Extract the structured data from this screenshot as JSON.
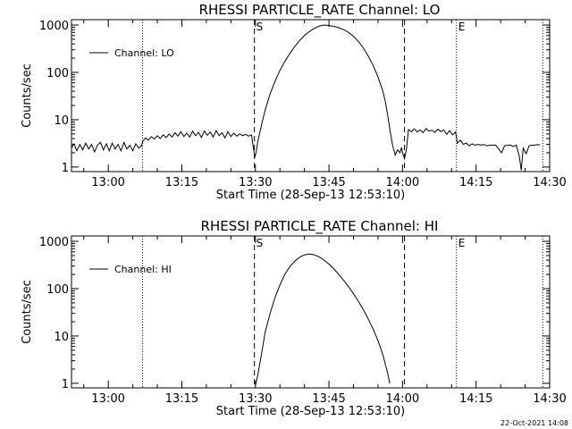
{
  "footer": {
    "generated": "22-Oct-2021 14:08"
  },
  "chart_data": [
    {
      "type": "line",
      "title": "RHESSI PARTICLE_RATE Channel: LO",
      "xlabel": "Start Time (28-Sep-13 12:53:10)",
      "ylabel": "Counts/sec",
      "xlim_minutes": [
        52.5,
        150.0
      ],
      "ylim": [
        0.8,
        1300
      ],
      "log_y": true,
      "x_ticks": [
        {
          "min": 60,
          "label": "13:00"
        },
        {
          "min": 75,
          "label": "13:15"
        },
        {
          "min": 90,
          "label": "13:30"
        },
        {
          "min": 105,
          "label": "13:45"
        },
        {
          "min": 120,
          "label": "14:00"
        },
        {
          "min": 135,
          "label": "14:15"
        },
        {
          "min": 150,
          "label": "14:30"
        }
      ],
      "y_ticks": [
        {
          "value": 1,
          "label": "1"
        },
        {
          "value": 10,
          "label": "10"
        },
        {
          "value": 100,
          "label": "100"
        },
        {
          "value": 1000,
          "label": "1000"
        }
      ],
      "legend": {
        "label": "Channel: LO",
        "position": "top-left"
      },
      "markers": [
        {
          "min": 67.0,
          "style": "dotted",
          "label": ""
        },
        {
          "min": 89.8,
          "style": "dashed",
          "label": "S"
        },
        {
          "min": 120.4,
          "style": "dashed",
          "label": ""
        },
        {
          "min": 131.0,
          "style": "dotted",
          "label": "E"
        },
        {
          "min": 148.6,
          "style": "dotted",
          "label": ""
        }
      ],
      "series": [
        {
          "values": [
            [
              52.5,
              2.5
            ],
            [
              53.0,
              3.1
            ],
            [
              53.6,
              2.2
            ],
            [
              54.2,
              3.0
            ],
            [
              54.8,
              2.3
            ],
            [
              55.4,
              3.2
            ],
            [
              56.0,
              2.4
            ],
            [
              56.6,
              3.0
            ],
            [
              57.2,
              2.1
            ],
            [
              57.8,
              2.9
            ],
            [
              58.4,
              3.3
            ],
            [
              59.0,
              2.3
            ],
            [
              59.6,
              3.1
            ],
            [
              60.2,
              2.2
            ],
            [
              60.8,
              3.2
            ],
            [
              61.4,
              2.4
            ],
            [
              62.0,
              3.0
            ],
            [
              62.6,
              2.2
            ],
            [
              63.2,
              3.3
            ],
            [
              63.8,
              2.4
            ],
            [
              64.4,
              2.9
            ],
            [
              65.0,
              2.2
            ],
            [
              65.6,
              3.1
            ],
            [
              66.2,
              2.5
            ],
            [
              66.8,
              2.8
            ],
            [
              67.0,
              3.5
            ],
            [
              67.6,
              4.1
            ],
            [
              68.2,
              3.7
            ],
            [
              68.8,
              4.4
            ],
            [
              69.4,
              3.9
            ],
            [
              70.0,
              4.6
            ],
            [
              70.6,
              4.0
            ],
            [
              71.2,
              4.8
            ],
            [
              71.8,
              4.2
            ],
            [
              72.4,
              5.0
            ],
            [
              73.0,
              4.3
            ],
            [
              73.6,
              5.3
            ],
            [
              74.2,
              4.5
            ],
            [
              74.8,
              5.6
            ],
            [
              75.4,
              4.4
            ],
            [
              76.0,
              5.2
            ],
            [
              76.6,
              4.3
            ],
            [
              77.2,
              5.7
            ],
            [
              77.8,
              4.6
            ],
            [
              78.4,
              5.4
            ],
            [
              79.0,
              4.2
            ],
            [
              79.6,
              5.8
            ],
            [
              80.2,
              4.7
            ],
            [
              80.8,
              5.5
            ],
            [
              81.4,
              4.3
            ],
            [
              82.0,
              5.9
            ],
            [
              82.6,
              4.6
            ],
            [
              83.2,
              5.3
            ],
            [
              83.8,
              4.1
            ],
            [
              84.4,
              5.6
            ],
            [
              85.0,
              4.4
            ],
            [
              85.6,
              5.2
            ],
            [
              86.2,
              4.5
            ],
            [
              86.8,
              5.0
            ],
            [
              87.4,
              4.6
            ],
            [
              88.0,
              4.9
            ],
            [
              88.6,
              4.5
            ],
            [
              89.2,
              4.8
            ],
            [
              89.6,
              2.5
            ],
            [
              89.9,
              1.6
            ],
            [
              90.2,
              2.2
            ],
            [
              90.5,
              3.5
            ],
            [
              91.0,
              6.0
            ],
            [
              91.5,
              10
            ],
            [
              92,
              16
            ],
            [
              92.5,
              24
            ],
            [
              93,
              35
            ],
            [
              94,
              65
            ],
            [
              95,
              110
            ],
            [
              96,
              170
            ],
            [
              97,
              250
            ],
            [
              98,
              350
            ],
            [
              99,
              470
            ],
            [
              100,
              600
            ],
            [
              101,
              730
            ],
            [
              102,
              850
            ],
            [
              103,
              950
            ],
            [
              104,
              1000
            ],
            [
              105,
              980
            ],
            [
              106,
              940
            ],
            [
              107,
              880
            ],
            [
              108,
              800
            ],
            [
              109,
              700
            ],
            [
              110,
              580
            ],
            [
              111,
              450
            ],
            [
              112,
              330
            ],
            [
              113,
              220
            ],
            [
              114,
              140
            ],
            [
              115,
              80
            ],
            [
              116,
              40
            ],
            [
              116.5,
              24
            ],
            [
              117,
              12
            ],
            [
              117.5,
              5.5
            ],
            [
              118,
              2.8
            ],
            [
              118.5,
              1.8
            ],
            [
              119.0,
              2.3
            ],
            [
              119.5,
              2.0
            ],
            [
              119.8,
              2.6
            ],
            [
              120.0,
              2.0
            ],
            [
              120.4,
              1.5
            ],
            [
              120.8,
              2.4
            ],
            [
              121.2,
              6.2
            ],
            [
              121.8,
              5.6
            ],
            [
              122.4,
              6.4
            ],
            [
              123.0,
              5.5
            ],
            [
              123.6,
              6.1
            ],
            [
              124.2,
              5.3
            ],
            [
              124.8,
              6.5
            ],
            [
              125.4,
              5.7
            ],
            [
              126.0,
              6.0
            ],
            [
              126.6,
              5.4
            ],
            [
              127.2,
              6.3
            ],
            [
              127.8,
              5.6
            ],
            [
              128.4,
              6.1
            ],
            [
              129.0,
              4.9
            ],
            [
              129.6,
              5.9
            ],
            [
              130.2,
              4.8
            ],
            [
              130.8,
              5.5
            ],
            [
              131.2,
              3.2
            ],
            [
              131.8,
              3.7
            ],
            [
              132.4,
              3.0
            ],
            [
              133.0,
              3.2
            ],
            [
              133.6,
              2.8
            ],
            [
              134.2,
              3.1
            ],
            [
              134.8,
              2.9
            ],
            [
              135.4,
              3.0
            ],
            [
              136.0,
              2.9
            ],
            [
              136.6,
              3.0
            ],
            [
              137.2,
              2.8
            ],
            [
              137.8,
              2.9
            ],
            [
              138.4,
              2.9
            ],
            [
              139.0,
              2.9
            ],
            [
              139.6,
              2.4
            ],
            [
              140.2,
              2.0
            ],
            [
              140.8,
              2.8
            ],
            [
              141.4,
              2.9
            ],
            [
              142.0,
              2.9
            ],
            [
              142.6,
              2.7
            ],
            [
              143.2,
              2.9
            ],
            [
              143.8,
              1.7
            ],
            [
              144.2,
              0.85
            ],
            [
              144.6,
              2.5
            ],
            [
              145.2,
              1.9
            ],
            [
              145.8,
              2.8
            ],
            [
              146.4,
              2.9
            ],
            [
              147.0,
              2.9
            ],
            [
              147.6,
              3.0
            ],
            [
              148.0,
              2.9
            ]
          ]
        }
      ]
    },
    {
      "type": "line",
      "title": "RHESSI PARTICLE_RATE Channel: HI",
      "xlabel": "Start Time (28-Sep-13 12:53:10)",
      "ylabel": "Counts/sec",
      "xlim_minutes": [
        52.5,
        150.0
      ],
      "ylim": [
        0.8,
        1300
      ],
      "log_y": true,
      "x_ticks": [
        {
          "min": 60,
          "label": "13:00"
        },
        {
          "min": 75,
          "label": "13:15"
        },
        {
          "min": 90,
          "label": "13:30"
        },
        {
          "min": 105,
          "label": "13:45"
        },
        {
          "min": 120,
          "label": "14:00"
        },
        {
          "min": 135,
          "label": "14:15"
        },
        {
          "min": 150,
          "label": "14:30"
        }
      ],
      "y_ticks": [
        {
          "value": 1,
          "label": "1"
        },
        {
          "value": 10,
          "label": "10"
        },
        {
          "value": 100,
          "label": "100"
        },
        {
          "value": 1000,
          "label": "1000"
        }
      ],
      "legend": {
        "label": "Channel: HI",
        "position": "top-left"
      },
      "markers": [
        {
          "min": 67.0,
          "style": "dotted",
          "label": ""
        },
        {
          "min": 89.8,
          "style": "dashed",
          "label": "S"
        },
        {
          "min": 120.4,
          "style": "dashed",
          "label": ""
        },
        {
          "min": 131.0,
          "style": "dotted",
          "label": "E"
        },
        {
          "min": 148.6,
          "style": "dotted",
          "label": ""
        }
      ],
      "series": [
        {
          "values": [
            [
              90.0,
              0.9
            ],
            [
              90.5,
              1.5
            ],
            [
              91,
              3
            ],
            [
              91.5,
              6
            ],
            [
              92,
              12
            ],
            [
              93,
              30
            ],
            [
              94,
              65
            ],
            [
              95,
              120
            ],
            [
              96,
              200
            ],
            [
              97,
              290
            ],
            [
              98,
              380
            ],
            [
              99,
              460
            ],
            [
              100,
              520
            ],
            [
              101,
              540
            ],
            [
              102,
              520
            ],
            [
              103,
              470
            ],
            [
              104,
              400
            ],
            [
              105,
              330
            ],
            [
              106,
              260
            ],
            [
              107,
              200
            ],
            [
              108,
              150
            ],
            [
              109,
              110
            ],
            [
              110,
              78
            ],
            [
              111,
              54
            ],
            [
              112,
              36
            ],
            [
              113,
              23
            ],
            [
              114,
              14
            ],
            [
              115,
              8
            ],
            [
              116,
              4
            ],
            [
              116.5,
              2.5
            ],
            [
              117,
              1.6
            ],
            [
              117.4,
              1.0
            ]
          ]
        }
      ]
    }
  ]
}
